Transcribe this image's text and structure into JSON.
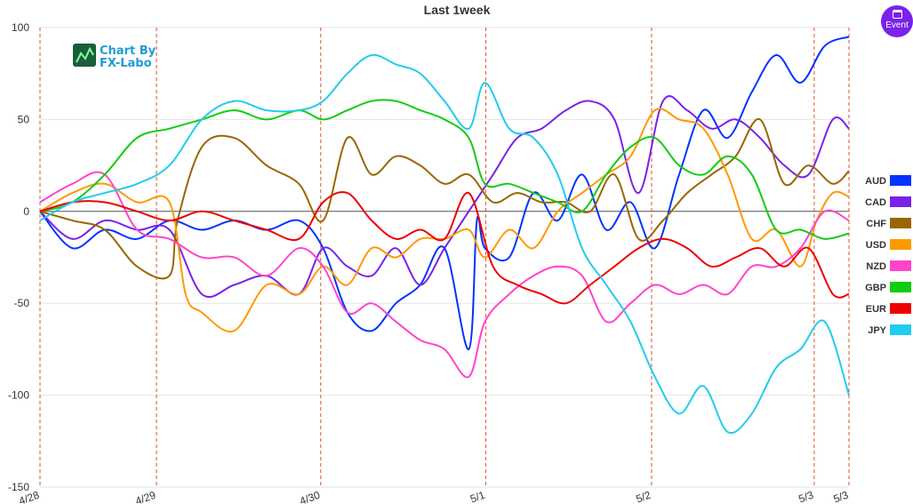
{
  "chart_data": {
    "type": "line",
    "title": "Last 1week",
    "ylim": [
      -150,
      100
    ],
    "y_ticks": [
      100,
      50,
      0,
      -50,
      -100,
      -150
    ],
    "x_ticks": [
      "4/28",
      "4/29",
      "4/30",
      "5/1",
      "5/2",
      "5/3",
      "5/3"
    ],
    "x_tick_positions": [
      0,
      14.4,
      34.7,
      55.1,
      75.6,
      95.7,
      100
    ],
    "x_range": [
      0,
      100
    ],
    "grid": true,
    "legend_placement": "right",
    "series": [
      {
        "name": "AUD",
        "color": "#0033ff",
        "x": [
          0,
          4,
          8,
          12,
          16,
          20,
          24,
          28,
          32,
          35,
          38,
          41,
          44,
          47,
          50,
          53,
          54,
          55,
          58,
          61,
          64,
          67,
          70,
          73,
          76,
          79,
          82,
          85,
          88,
          91,
          94,
          97,
          100
        ],
        "y": [
          0,
          -20,
          -10,
          -15,
          -5,
          -10,
          -5,
          -10,
          -5,
          -20,
          -55,
          -65,
          -50,
          -40,
          -20,
          -75,
          -5,
          -20,
          -25,
          10,
          -5,
          20,
          -10,
          5,
          -20,
          20,
          55,
          40,
          65,
          85,
          70,
          90,
          95
        ]
      },
      {
        "name": "CAD",
        "color": "#7a22e8",
        "x": [
          0,
          4,
          8,
          12,
          16,
          20,
          24,
          28,
          32,
          35,
          38,
          41,
          44,
          47,
          50,
          53,
          56,
          59,
          62,
          65,
          68,
          71,
          74,
          77,
          80,
          83,
          86,
          89,
          92,
          95,
          98,
          100
        ],
        "y": [
          0,
          -15,
          -5,
          -10,
          -10,
          -45,
          -40,
          -35,
          -45,
          -20,
          -30,
          -35,
          -20,
          -40,
          -20,
          0,
          20,
          40,
          45,
          55,
          60,
          50,
          10,
          60,
          55,
          45,
          50,
          40,
          25,
          20,
          50,
          45
        ]
      },
      {
        "name": "CHF",
        "color": "#9a6600",
        "x": [
          0,
          4,
          8,
          12,
          16,
          17,
          20,
          24,
          28,
          32,
          35,
          38,
          41,
          44,
          47,
          50,
          53,
          56,
          59,
          62,
          65,
          68,
          71,
          74,
          77,
          80,
          83,
          86,
          89,
          92,
          95,
          98,
          100
        ],
        "y": [
          0,
          -5,
          -10,
          -30,
          -35,
          -5,
          35,
          40,
          25,
          15,
          -5,
          40,
          20,
          30,
          25,
          15,
          20,
          5,
          10,
          5,
          5,
          0,
          20,
          -15,
          -5,
          10,
          20,
          30,
          50,
          15,
          25,
          15,
          22
        ]
      },
      {
        "name": "USD",
        "color": "#ff9900",
        "x": [
          0,
          4,
          8,
          12,
          16,
          18,
          20,
          24,
          28,
          32,
          35,
          38,
          41,
          44,
          47,
          50,
          53,
          55,
          58,
          61,
          64,
          67,
          70,
          73,
          76,
          79,
          82,
          85,
          88,
          91,
          94,
          96,
          98,
          100
        ],
        "y": [
          0,
          10,
          15,
          5,
          5,
          -45,
          -55,
          -65,
          -40,
          -45,
          -30,
          -40,
          -20,
          -25,
          -15,
          -15,
          -10,
          -25,
          -10,
          -20,
          0,
          10,
          20,
          30,
          55,
          50,
          45,
          20,
          -15,
          -10,
          -30,
          -5,
          10,
          8
        ]
      },
      {
        "name": "NZD",
        "color": "#ff44cc",
        "x": [
          0,
          4,
          8,
          12,
          16,
          20,
          24,
          28,
          32,
          35,
          38,
          41,
          44,
          47,
          50,
          53,
          55,
          58,
          61,
          64,
          67,
          70,
          73,
          76,
          79,
          82,
          85,
          88,
          91,
          94,
          97,
          100
        ],
        "y": [
          5,
          15,
          20,
          -10,
          -15,
          -25,
          -25,
          -35,
          -20,
          -30,
          -55,
          -50,
          -60,
          -70,
          -75,
          -90,
          -60,
          -45,
          -35,
          -30,
          -35,
          -60,
          -50,
          -40,
          -45,
          -40,
          -45,
          -30,
          -30,
          -20,
          0,
          -5
        ]
      },
      {
        "name": "GBP",
        "color": "#11cc11",
        "x": [
          0,
          4,
          8,
          12,
          16,
          20,
          24,
          28,
          32,
          35,
          38,
          41,
          44,
          47,
          50,
          53,
          55,
          58,
          61,
          64,
          67,
          70,
          73,
          76,
          79,
          82,
          85,
          88,
          91,
          94,
          97,
          100
        ],
        "y": [
          0,
          5,
          20,
          40,
          45,
          50,
          55,
          50,
          55,
          50,
          55,
          60,
          60,
          55,
          50,
          40,
          15,
          15,
          10,
          5,
          0,
          20,
          35,
          40,
          25,
          20,
          30,
          20,
          -10,
          -10,
          -15,
          -12
        ]
      },
      {
        "name": "EUR",
        "color": "#ee0000",
        "x": [
          0,
          4,
          8,
          12,
          16,
          20,
          24,
          28,
          32,
          35,
          38,
          41,
          44,
          47,
          50,
          53,
          56,
          59,
          62,
          65,
          68,
          71,
          74,
          77,
          80,
          83,
          86,
          89,
          92,
          95,
          98,
          100
        ],
        "y": [
          0,
          5,
          5,
          0,
          -5,
          0,
          -5,
          -10,
          -15,
          5,
          10,
          -5,
          -15,
          -10,
          -15,
          10,
          -30,
          -40,
          -45,
          -50,
          -40,
          -30,
          -20,
          -15,
          -20,
          -30,
          -25,
          -20,
          -30,
          -20,
          -45,
          -45
        ]
      },
      {
        "name": "JPY",
        "color": "#22ccee",
        "x": [
          0,
          4,
          8,
          12,
          16,
          20,
          24,
          28,
          32,
          35,
          38,
          41,
          44,
          47,
          50,
          53,
          55,
          58,
          61,
          64,
          67,
          70,
          73,
          76,
          79,
          82,
          85,
          88,
          91,
          94,
          97,
          100
        ],
        "y": [
          -5,
          5,
          10,
          15,
          25,
          50,
          60,
          55,
          55,
          60,
          75,
          85,
          80,
          75,
          60,
          45,
          70,
          45,
          40,
          20,
          -20,
          -40,
          -60,
          -90,
          -110,
          -95,
          -120,
          -110,
          -85,
          -75,
          -60,
          -100
        ]
      }
    ]
  },
  "logo": {
    "line1": "Chart By",
    "line2": "FX-Labo"
  },
  "event_button": {
    "label": "Event"
  }
}
